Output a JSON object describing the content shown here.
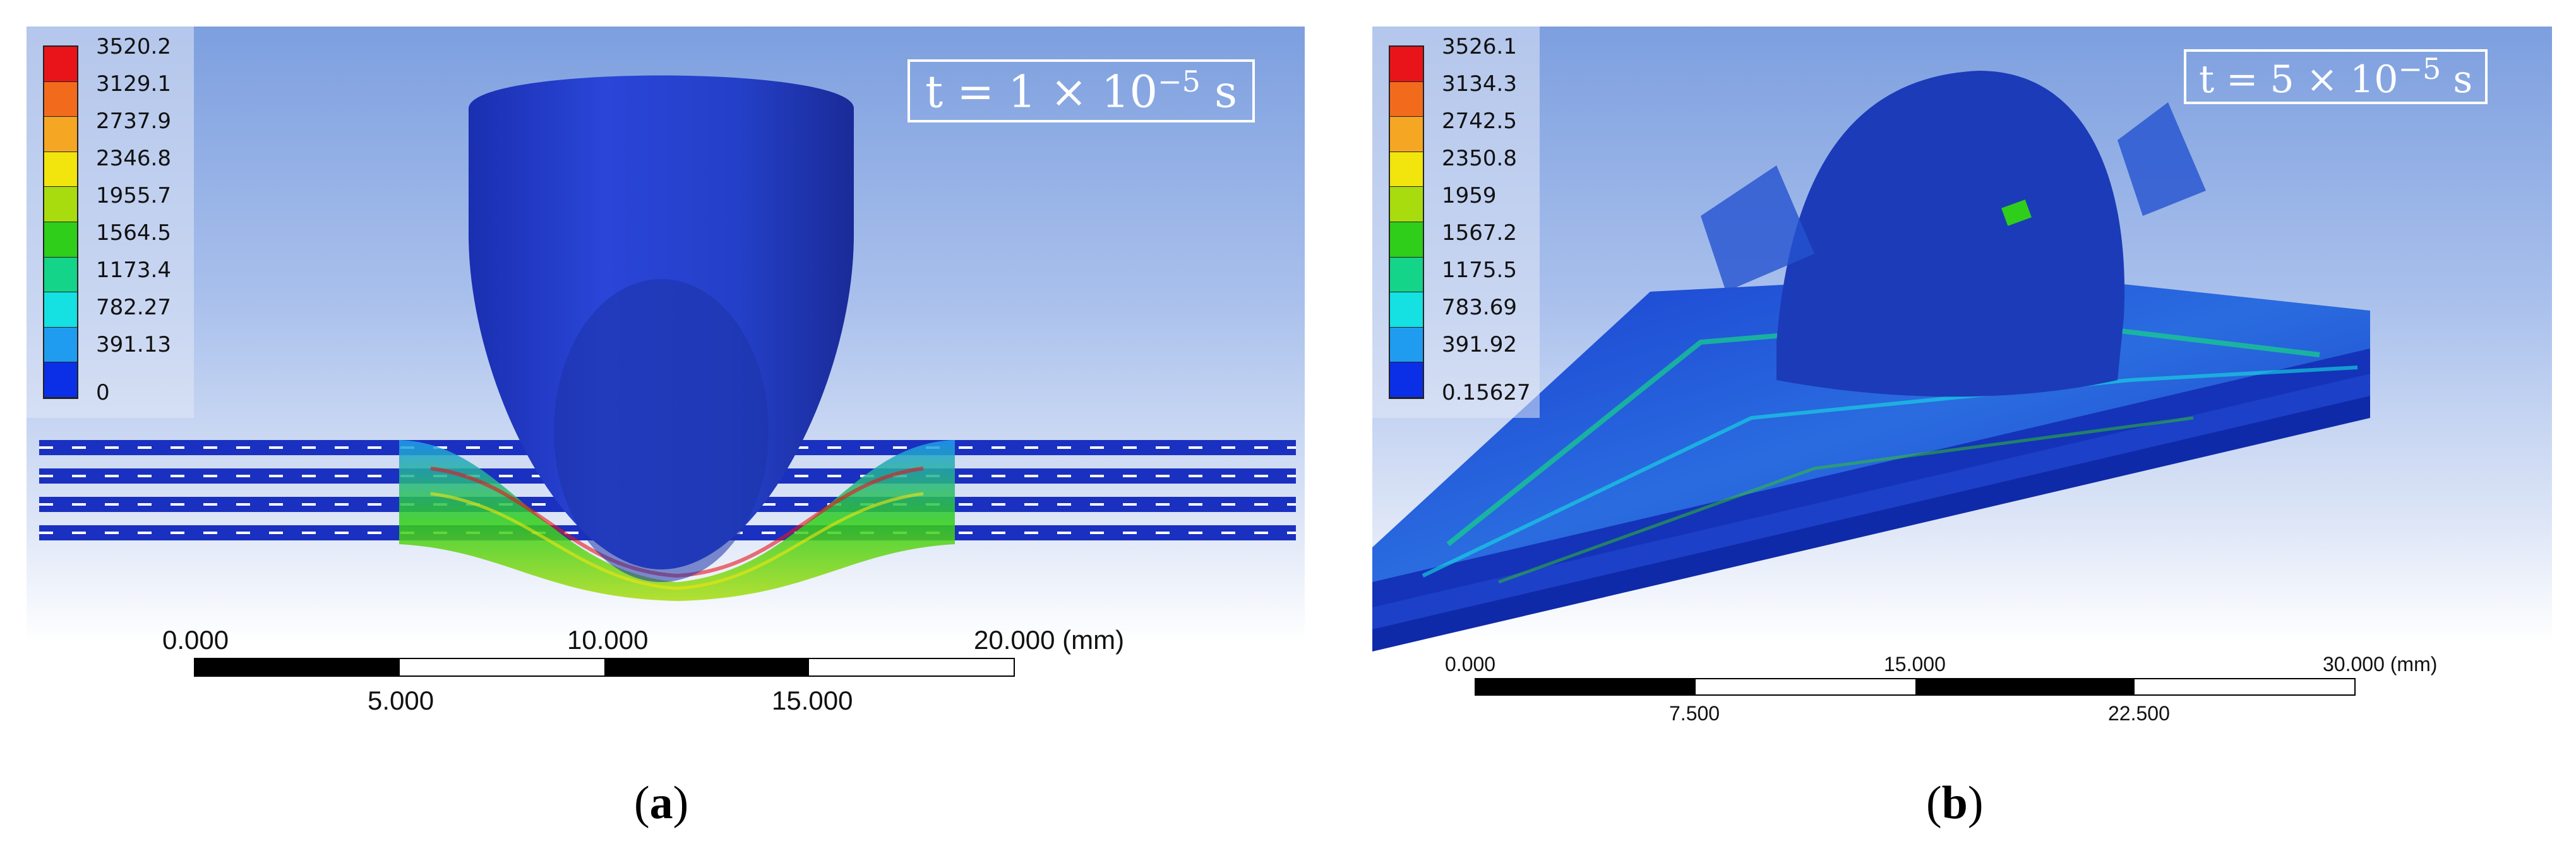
{
  "panels": [
    {
      "legend": [
        "3520.2",
        "3129.1",
        "2737.9",
        "2346.8",
        "1955.7",
        "1564.5",
        "1173.4",
        "782.27",
        "391.13",
        "0"
      ],
      "time": {
        "prefix": "t = 1 × 10",
        "exponent": "−5",
        "unit": " s"
      },
      "scale": {
        "top_labels": [
          "0.000",
          "10.000",
          "20.000 (mm)"
        ],
        "bottom_labels": [
          "5.000",
          "15.000"
        ]
      },
      "caption_letter": "a"
    },
    {
      "legend": [
        "3526.1",
        "3134.3",
        "2742.5",
        "2350.8",
        "1959",
        "1567.2",
        "1175.5",
        "783.69",
        "391.92",
        "0.15627"
      ],
      "time": {
        "prefix": "t = 5 × 10",
        "exponent": "−5",
        "unit": " s"
      },
      "scale": {
        "top_labels": [
          "0.000",
          "15.000",
          "30.000 (mm)"
        ],
        "bottom_labels": [
          "7.500",
          "22.500"
        ]
      },
      "caption_letter": "b"
    }
  ],
  "legend_colors": [
    "#e8141a",
    "#f26b1d",
    "#f5a623",
    "#f2e40d",
    "#a8dc0e",
    "#2fce1a",
    "#14d489",
    "#15e0e2",
    "#1f9cf0",
    "#0b2fe6"
  ]
}
